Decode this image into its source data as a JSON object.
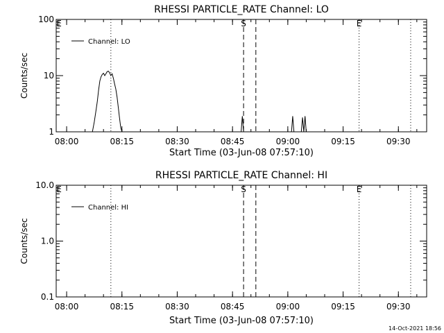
{
  "footer_timestamp": "14-Oct-2021 18:56",
  "chart_data": [
    {
      "type": "line",
      "title": "RHESSI PARTICLE_RATE Channel: LO",
      "xlabel": "Start Time (03-Jun-08 07:57:10)",
      "ylabel": "Counts/sec",
      "yscale": "log",
      "ylim": [
        1,
        100
      ],
      "ytick_values": [
        1,
        10,
        100
      ],
      "ytick_labels": [
        "1",
        "10",
        "100"
      ],
      "xlim": [
        "07:57:10",
        "09:37:40"
      ],
      "xtick_values": [
        "08:00",
        "08:15",
        "08:30",
        "08:45",
        "09:00",
        "09:15",
        "09:30"
      ],
      "xtick_labels": [
        "08:00",
        "08:15",
        "08:30",
        "08:45",
        "09:00",
        "09:15",
        "09:30"
      ],
      "legend": {
        "label": "Channel: LO",
        "position": "top-left"
      },
      "markers": [
        {
          "label": "E",
          "time": "07:57:10",
          "style": "none"
        },
        {
          "label": "S",
          "time": "08:48:00",
          "style": "dashed"
        },
        {
          "label": "",
          "time": "08:51:20",
          "style": "dashed"
        },
        {
          "label": "E",
          "time": "09:19:20",
          "style": "dotted"
        },
        {
          "label": "",
          "time": "08:12:00",
          "style": "dotted"
        },
        {
          "label": "",
          "time": "09:33:20",
          "style": "dotted"
        }
      ],
      "series": [
        {
          "name": "Channel: LO",
          "x": [
            "08:07:00",
            "08:07:30",
            "08:08:00",
            "08:08:20",
            "08:08:40",
            "08:09:00",
            "08:09:20",
            "08:09:40",
            "08:10:00",
            "08:10:20",
            "08:10:40",
            "08:11:00",
            "08:11:20",
            "08:11:40",
            "08:12:00",
            "08:12:20",
            "08:12:40",
            "08:13:00",
            "08:13:20",
            "08:13:40",
            "08:14:00",
            "08:14:20",
            "08:14:40",
            "08:15:00",
            "08:47:20",
            "08:47:40",
            "08:48:00",
            "09:01:00",
            "09:01:20",
            "09:01:40",
            "09:03:40",
            "09:04:00",
            "09:04:20",
            "09:04:40",
            "09:05:00"
          ],
          "y": [
            1.0,
            1.5,
            2.5,
            3.5,
            5.5,
            8.0,
            9.5,
            10.5,
            11.0,
            10.0,
            10.8,
            11.8,
            12.0,
            11.2,
            10.0,
            10.8,
            9.0,
            7.2,
            5.8,
            4.2,
            2.8,
            1.8,
            1.2,
            1.0,
            1.0,
            1.9,
            1.0,
            1.0,
            1.9,
            1.0,
            1.0,
            1.8,
            1.0,
            1.9,
            1.0
          ]
        }
      ]
    },
    {
      "type": "line",
      "title": "RHESSI PARTICLE_RATE Channel: HI",
      "xlabel": "Start Time (03-Jun-08 07:57:10)",
      "ylabel": "Counts/sec",
      "yscale": "log",
      "ylim": [
        0.1,
        10
      ],
      "ytick_values": [
        0.1,
        1,
        10
      ],
      "ytick_labels": [
        "0.1",
        "1.0",
        "10.0"
      ],
      "xlim": [
        "07:57:10",
        "09:37:40"
      ],
      "xtick_values": [
        "08:00",
        "08:15",
        "08:30",
        "08:45",
        "09:00",
        "09:15",
        "09:30"
      ],
      "xtick_labels": [
        "08:00",
        "08:15",
        "08:30",
        "08:45",
        "09:00",
        "09:15",
        "09:30"
      ],
      "legend": {
        "label": "Channel: HI",
        "position": "top-left"
      },
      "markers": [
        {
          "label": "E",
          "time": "07:57:10",
          "style": "none"
        },
        {
          "label": "S",
          "time": "08:48:00",
          "style": "dashed"
        },
        {
          "label": "",
          "time": "08:51:20",
          "style": "dashed"
        },
        {
          "label": "E",
          "time": "09:19:20",
          "style": "dotted"
        },
        {
          "label": "",
          "time": "08:12:00",
          "style": "dotted"
        },
        {
          "label": "",
          "time": "09:33:20",
          "style": "dotted"
        }
      ],
      "series": [
        {
          "name": "Channel: HI",
          "x": [],
          "y": []
        }
      ]
    }
  ]
}
